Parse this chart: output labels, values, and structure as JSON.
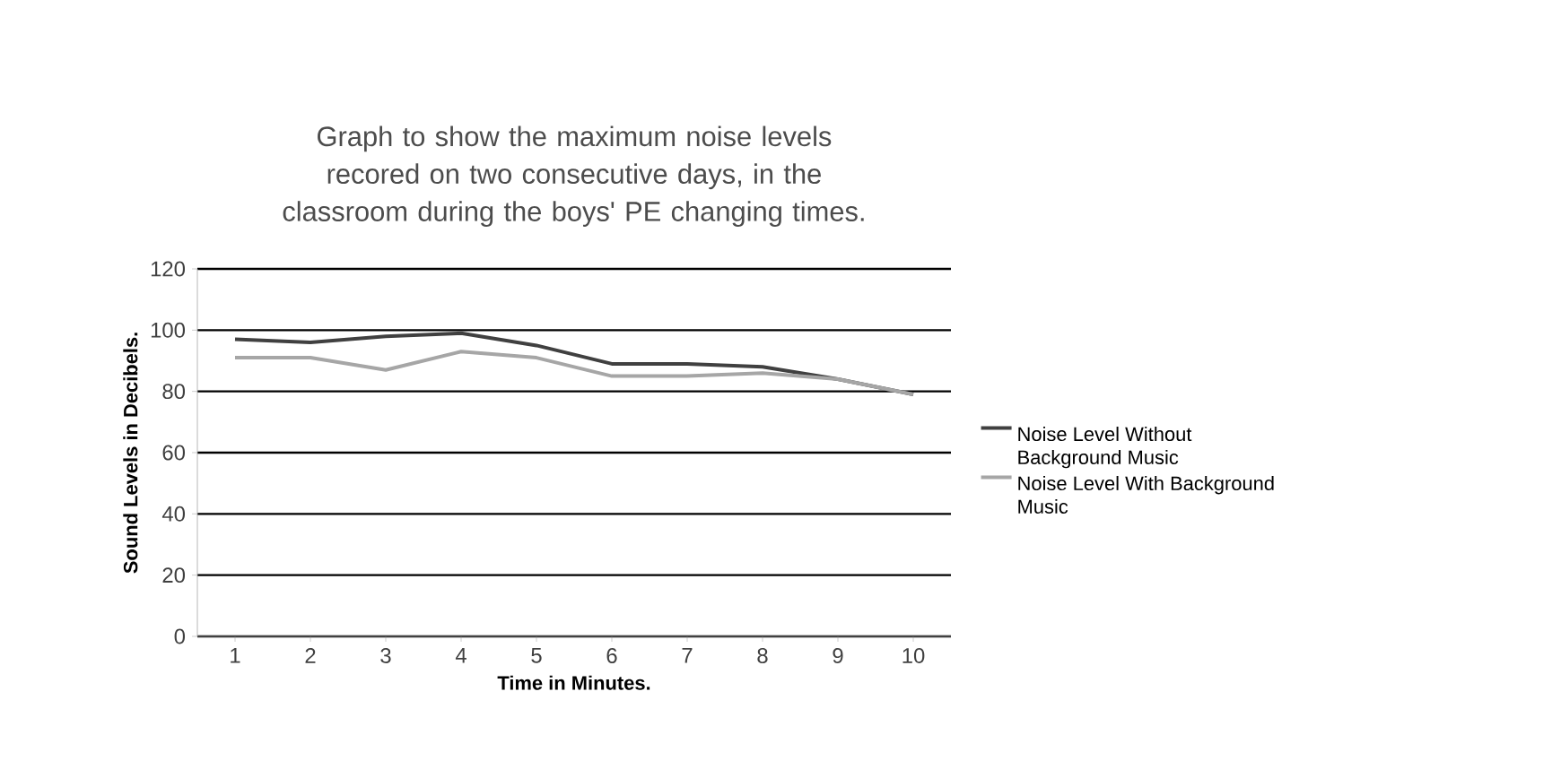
{
  "chart_data": {
    "type": "line",
    "title": "Graph to show the maximum noise levels recored on two consecutive days, in the classroom during the boys' PE changing  times.",
    "xlabel": "Time in Minutes.",
    "ylabel": "Sound Levels in Decibels.",
    "categories": [
      "1",
      "2",
      "3",
      "4",
      "5",
      "6",
      "7",
      "8",
      "9",
      "10"
    ],
    "series": [
      {
        "name": "Noise Level Without Background Music",
        "color": "#404040",
        "values": [
          97,
          96,
          98,
          99,
          95,
          89,
          89,
          88,
          84,
          79
        ]
      },
      {
        "name": "Noise Level With Background Music",
        "color": "#a6a6a6",
        "values": [
          91,
          91,
          87,
          93,
          91,
          85,
          85,
          86,
          84,
          79
        ]
      }
    ],
    "ylim": [
      0,
      120
    ],
    "yticks": [
      0,
      20,
      40,
      60,
      80,
      100,
      120
    ],
    "grid": "y",
    "legend": "right"
  }
}
